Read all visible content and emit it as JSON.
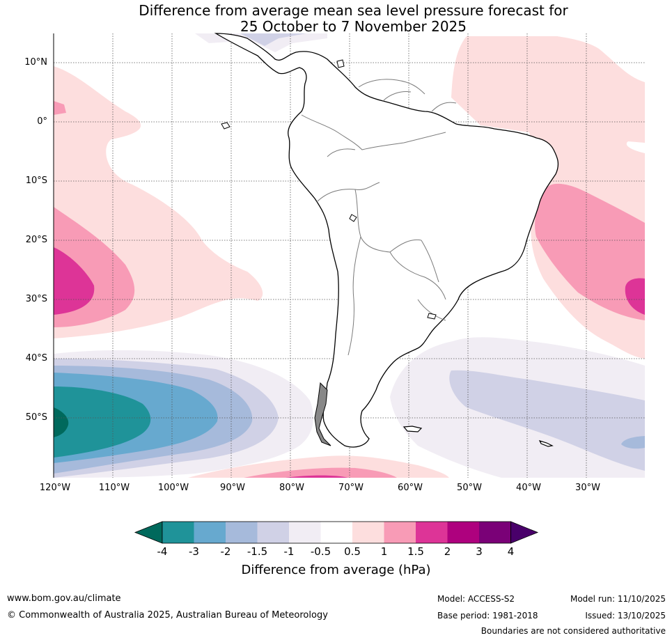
{
  "title": {
    "line1": "Difference from average mean sea level pressure forecast for",
    "line2": "25 October to 7 November 2025"
  },
  "map": {
    "lat_labels": [
      "10°N",
      "0°",
      "10°S",
      "20°S",
      "30°S",
      "40°S",
      "50°S"
    ],
    "lon_labels": [
      "120°W",
      "110°W",
      "100°W",
      "90°W",
      "80°W",
      "70°W",
      "60°W",
      "50°W",
      "40°W",
      "30°W"
    ]
  },
  "colorbar": {
    "label": "Difference from average (hPa)",
    "ticks": [
      "-4",
      "-3",
      "-2",
      "-1.5",
      "-1",
      "-0.5",
      "0.5",
      "1",
      "1.5",
      "2",
      "3",
      "4"
    ],
    "colors": {
      "below_min": "#00695c",
      "neg_4_3": "#1f9399",
      "neg_3_2": "#67a9cf",
      "neg_2_15": "#a6badb",
      "neg_15_1": "#d0d1e6",
      "neg_1_05": "#f1edf4",
      "neutral": "#ffffff",
      "pos_05_1": "#fddede",
      "pos_1_15": "#f89bb6",
      "pos_15_2": "#dd3497",
      "pos_2_3": "#ae017e",
      "pos_3_4": "#7a0177",
      "above_max": "#49006a"
    }
  },
  "footer": {
    "website": "www.bom.gov.au/climate",
    "copyright": "© Commonwealth of Australia 2025, Australian Bureau of Meteorology",
    "model": "Model: ACCESS-S2",
    "model_run": "Model run: 11/10/2025",
    "base_period": "Base period: 1981-2018",
    "issued": "Issued: 13/10/2025",
    "disclaimer": "Boundaries are not considered authoritative"
  }
}
